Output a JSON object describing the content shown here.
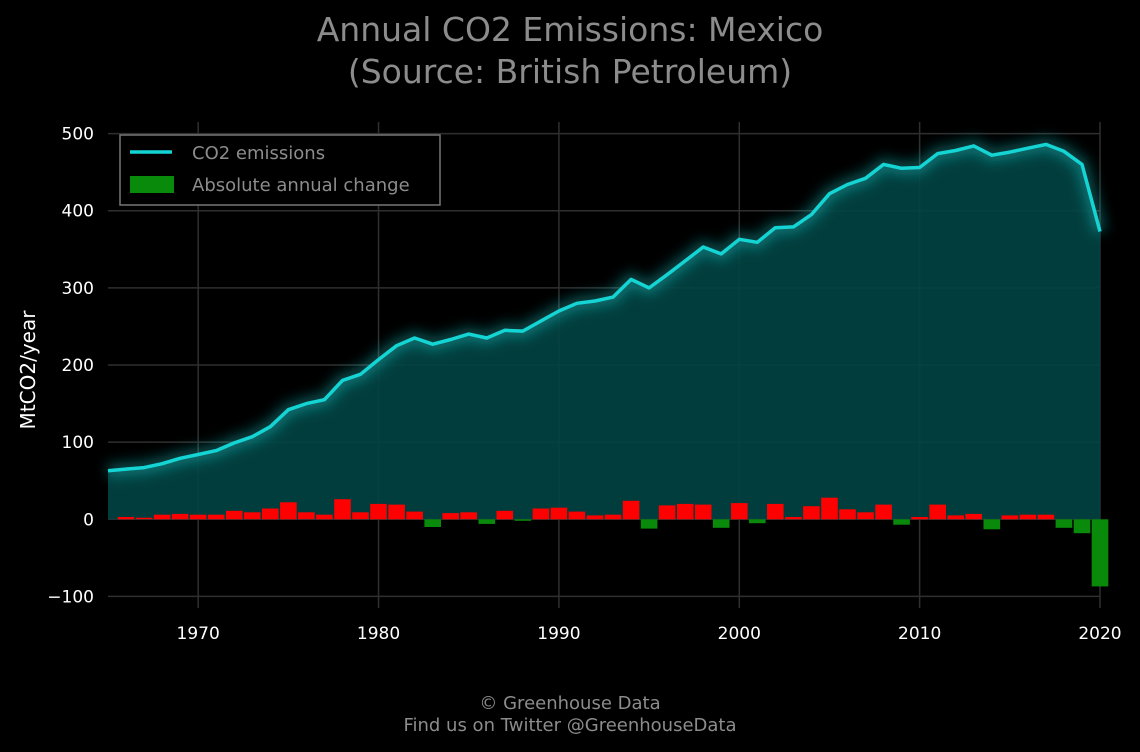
{
  "header": {
    "title_line1": "Annual CO2 Emissions: Mexico",
    "title_line2": "(Source: British Petroleum)"
  },
  "footer": {
    "line1": "© Greenhouse Data",
    "line2": "Find us on Twitter @GreenhouseData"
  },
  "colors": {
    "background": "#000000",
    "line": "#14d4d4",
    "area_fill": "#024444",
    "positive_change": "#ff0000",
    "negative_change": "#0a8a0a",
    "grid": "#2f2f2f",
    "legend_border": "#777777",
    "text_muted": "#8c8c8c"
  },
  "chart_data": {
    "type": "line",
    "title": "Annual CO2 Emissions: Mexico",
    "subtitle": "(Source: British Petroleum)",
    "xlabel": "",
    "ylabel": "MtCO2/year",
    "xlim": [
      1965,
      2020
    ],
    "ylim": [
      -115,
      515
    ],
    "xticks": [
      1970,
      1980,
      1990,
      2000,
      2010,
      2020
    ],
    "yticks": [
      -100,
      0,
      100,
      200,
      300,
      400,
      500
    ],
    "ytick_labels": [
      "−100",
      "0",
      "100",
      "200",
      "300",
      "400",
      "500"
    ],
    "grid": true,
    "legend": {
      "position": "top-left",
      "entries": [
        "CO2 emissions",
        "Absolute annual change"
      ]
    },
    "x": [
      1965,
      1966,
      1967,
      1968,
      1969,
      1970,
      1971,
      1972,
      1973,
      1974,
      1975,
      1976,
      1977,
      1978,
      1979,
      1980,
      1981,
      1982,
      1983,
      1984,
      1985,
      1986,
      1987,
      1988,
      1989,
      1990,
      1991,
      1992,
      1993,
      1994,
      1995,
      1996,
      1997,
      1998,
      1999,
      2000,
      2001,
      2002,
      2003,
      2004,
      2005,
      2006,
      2007,
      2008,
      2009,
      2010,
      2011,
      2012,
      2013,
      2014,
      2015,
      2016,
      2017,
      2018,
      2019,
      2020
    ],
    "series": [
      {
        "name": "CO2 emissions",
        "kind": "line",
        "values": [
          63,
          65,
          67,
          72,
          79,
          84,
          89,
          99,
          107,
          120,
          142,
          150,
          155,
          180,
          188,
          207,
          225,
          235,
          227,
          233,
          240,
          235,
          245,
          244,
          257,
          270,
          280,
          283,
          288,
          311,
          300,
          317,
          335,
          353,
          344,
          363,
          359,
          378,
          379,
          395,
          422,
          434,
          442,
          460,
          455,
          456,
          474,
          478,
          484,
          472,
          476,
          481,
          486,
          477,
          460,
          373
        ]
      },
      {
        "name": "Absolute annual change",
        "kind": "bar",
        "values": [
          null,
          3,
          2,
          6,
          7,
          6,
          6,
          11,
          9,
          14,
          22,
          9,
          6,
          26,
          9,
          20,
          19,
          10,
          -10,
          8,
          9,
          -6,
          11,
          -2,
          14,
          15,
          10,
          5,
          6,
          24,
          -12,
          18,
          20,
          19,
          -11,
          21,
          -5,
          20,
          3,
          17,
          28,
          13,
          9,
          19,
          -7,
          3,
          19,
          5,
          7,
          -13,
          5,
          6,
          6,
          -11,
          -18,
          -87
        ]
      }
    ]
  }
}
